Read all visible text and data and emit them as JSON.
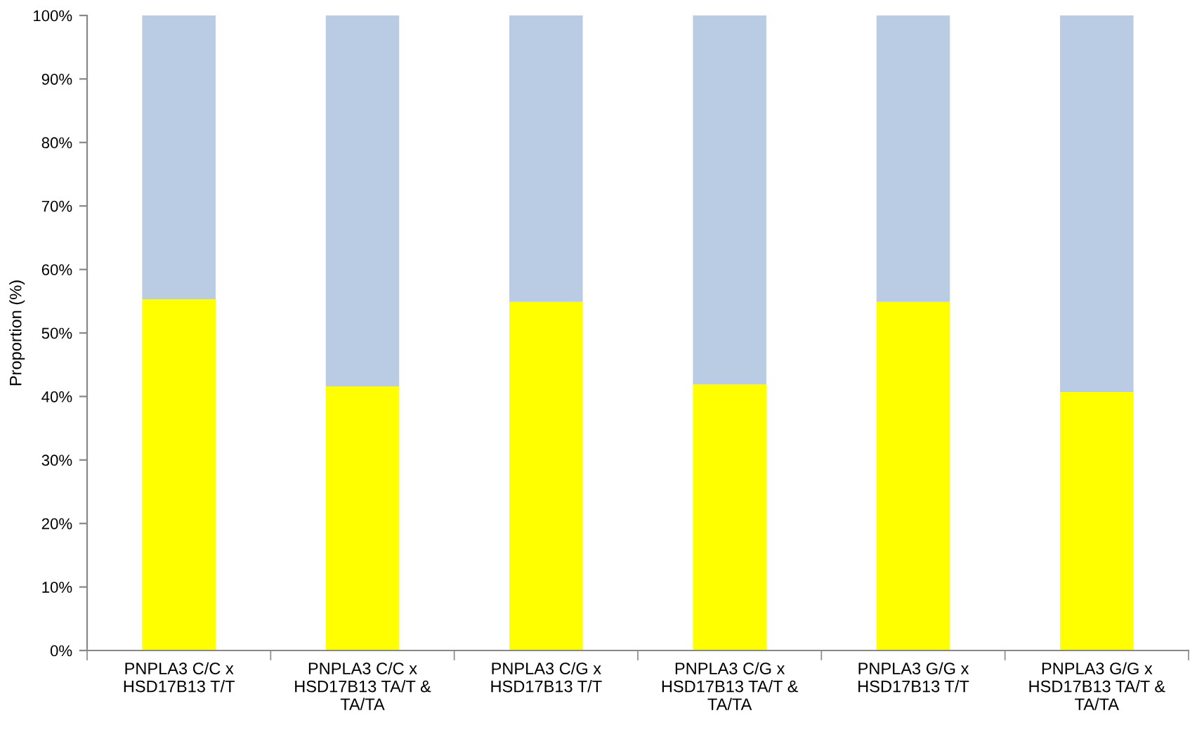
{
  "chart_data": {
    "type": "bar",
    "stacked": true,
    "ylabel": "Proportion (%)",
    "categories": [
      "PNPLA3 C/C x\nHSD17B13 T/T",
      "PNPLA3 C/C x\nHSD17B13 TA/T &\nTA/TA",
      "PNPLA3 C/G x\nHSD17B13 T/T",
      "PNPLA3 C/G x\nHSD17B13 TA/T &\nTA/TA",
      "PNPLA3 G/G x\nHSD17B13 T/T",
      "PNPLA3 G/G x\nHSD17B13 TA/T &\nTA/TA"
    ],
    "series": [
      {
        "color": "#ffff00",
        "values": [
          55.3,
          41.6,
          54.9,
          41.9,
          54.9,
          40.7
        ]
      },
      {
        "color": "#b9cce4",
        "values": [
          44.7,
          58.4,
          45.1,
          58.1,
          45.1,
          59.3
        ]
      }
    ],
    "ylim": [
      0,
      100
    ],
    "yticks": [
      {
        "value": 0,
        "label": "0%"
      },
      {
        "value": 10,
        "label": "10%"
      },
      {
        "value": 20,
        "label": "20%"
      },
      {
        "value": 30,
        "label": "30%"
      },
      {
        "value": 40,
        "label": "40%"
      },
      {
        "value": 50,
        "label": "50%"
      },
      {
        "value": 60,
        "label": "60%"
      },
      {
        "value": 70,
        "label": "70%"
      },
      {
        "value": 80,
        "label": "80%"
      },
      {
        "value": 90,
        "label": "90%"
      },
      {
        "value": 100,
        "label": "100%"
      }
    ],
    "grid": false
  }
}
